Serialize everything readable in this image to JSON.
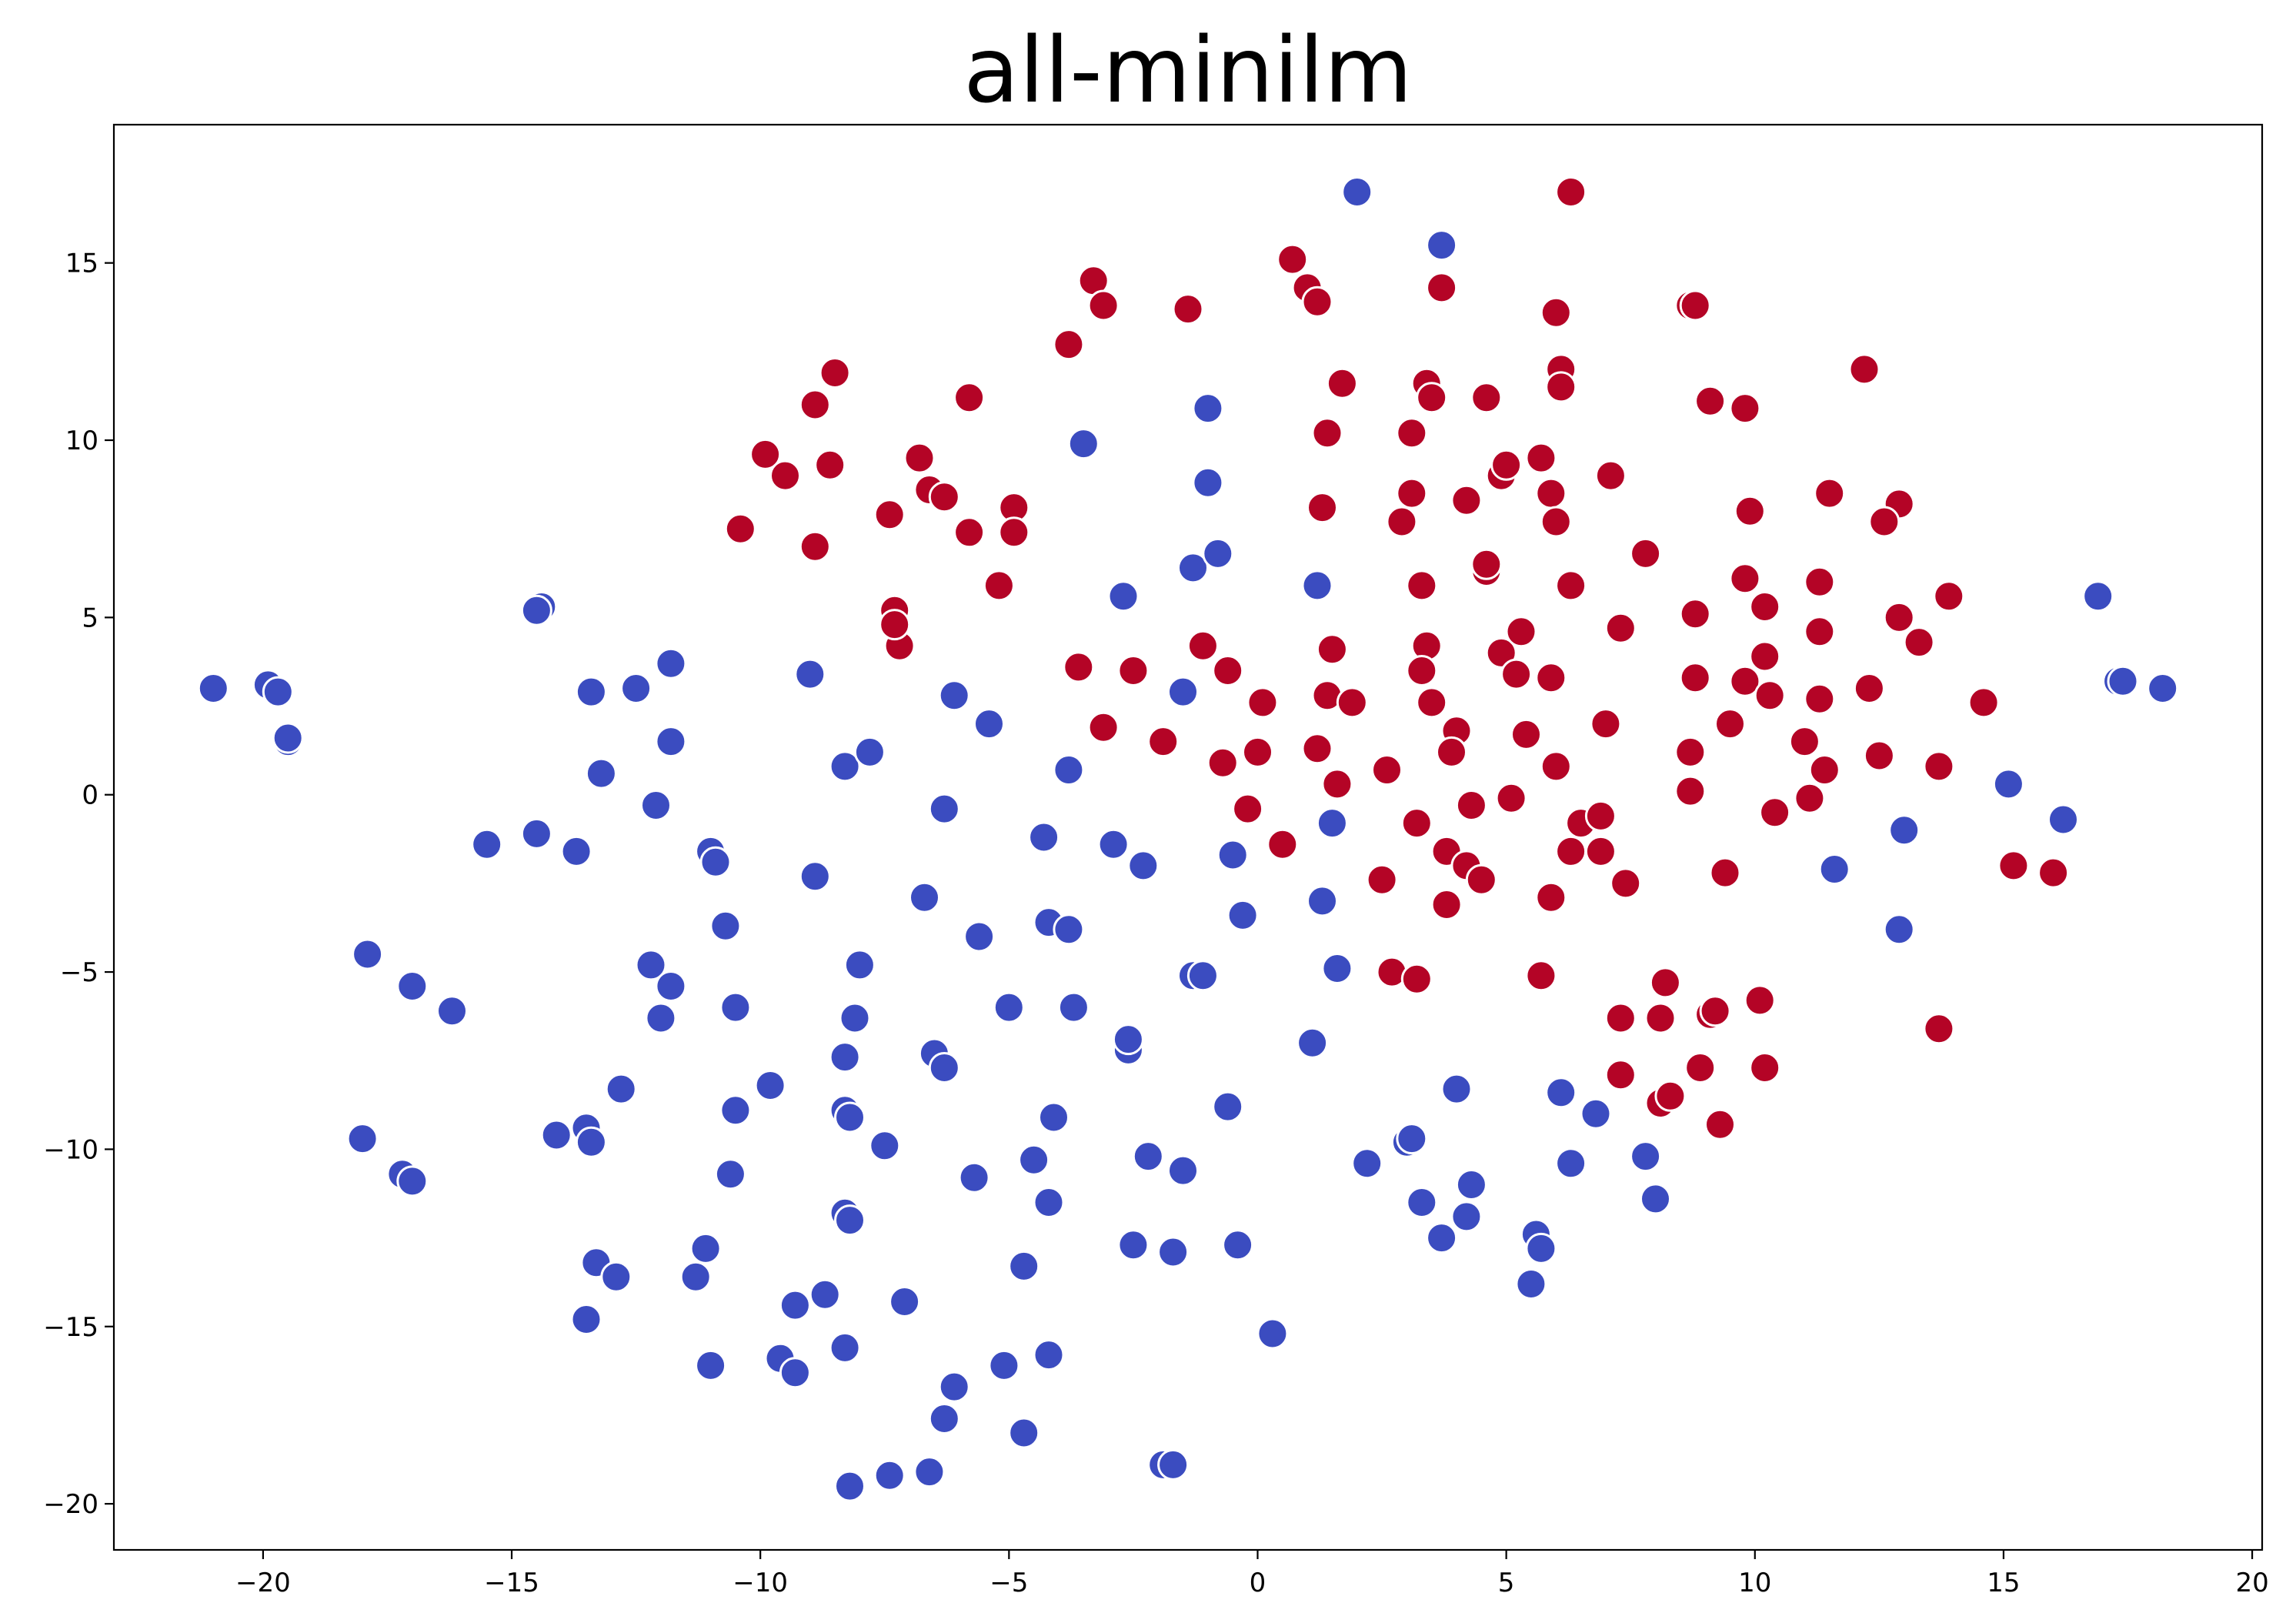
{
  "chart_data": {
    "type": "scatter",
    "title": "all-minilm",
    "xlabel": "",
    "ylabel": "",
    "xlim": [
      -23.0,
      20.2
    ],
    "ylim": [
      -21.3,
      18.9
    ],
    "xticks": [
      -20,
      -15,
      -10,
      -5,
      0,
      5,
      10,
      15,
      20
    ],
    "yticks": [
      15,
      10,
      5,
      0,
      -5,
      -10,
      -15,
      -20
    ],
    "xtick_labels": [
      "−20",
      "−15",
      "−10",
      "−5",
      "0",
      "5",
      "10",
      "15",
      "20"
    ],
    "ytick_labels": [
      "15",
      "10",
      "5",
      "0",
      "−5",
      "−10",
      "−15",
      "−20"
    ],
    "grid": false,
    "legend": "none",
    "series": [
      {
        "color": "#3b4cc0",
        "points": [
          [
            2.0,
            17.0
          ],
          [
            3.7,
            15.5
          ],
          [
            -3.5,
            9.9
          ],
          [
            -1.0,
            10.9
          ],
          [
            -1.0,
            8.8
          ],
          [
            -1.3,
            6.4
          ],
          [
            -0.8,
            6.8
          ],
          [
            1.2,
            5.9
          ],
          [
            -2.7,
            5.6
          ],
          [
            -21.0,
            3.0
          ],
          [
            -19.9,
            3.1
          ],
          [
            -19.7,
            2.9
          ],
          [
            -19.5,
            1.5
          ],
          [
            -19.5,
            1.6
          ],
          [
            -14.4,
            5.3
          ],
          [
            -14.5,
            5.2
          ],
          [
            -13.4,
            2.9
          ],
          [
            -12.5,
            3.0
          ],
          [
            -11.8,
            3.7
          ],
          [
            -9.0,
            3.4
          ],
          [
            -6.1,
            2.8
          ],
          [
            -5.4,
            2.0
          ],
          [
            -1.5,
            2.9
          ],
          [
            -11.8,
            1.5
          ],
          [
            -13.2,
            0.6
          ],
          [
            -8.3,
            0.8
          ],
          [
            -7.8,
            1.2
          ],
          [
            -3.8,
            0.7
          ],
          [
            -12.1,
            -0.3
          ],
          [
            -6.3,
            -0.4
          ],
          [
            -15.5,
            -1.4
          ],
          [
            -14.5,
            -1.1
          ],
          [
            -13.7,
            -1.6
          ],
          [
            -11.0,
            -1.6
          ],
          [
            -10.9,
            -1.9
          ],
          [
            -8.9,
            -2.3
          ],
          [
            -4.3,
            -1.2
          ],
          [
            -2.9,
            -1.4
          ],
          [
            -2.3,
            -2.0
          ],
          [
            -0.5,
            -1.7
          ],
          [
            1.5,
            -0.8
          ],
          [
            -6.7,
            -2.9
          ],
          [
            -10.7,
            -3.7
          ],
          [
            -5.6,
            -4.0
          ],
          [
            -4.2,
            -3.6
          ],
          [
            -3.8,
            -3.8
          ],
          [
            -0.3,
            -3.4
          ],
          [
            1.3,
            -3.0
          ],
          [
            -17.9,
            -4.5
          ],
          [
            -12.2,
            -4.8
          ],
          [
            -11.8,
            -5.4
          ],
          [
            -17.0,
            -5.4
          ],
          [
            -16.2,
            -6.1
          ],
          [
            -12.0,
            -6.3
          ],
          [
            -10.5,
            -6.0
          ],
          [
            -8.0,
            -4.8
          ],
          [
            -8.1,
            -6.3
          ],
          [
            -5.0,
            -6.0
          ],
          [
            -3.7,
            -6.0
          ],
          [
            -1.3,
            -5.1
          ],
          [
            -1.1,
            -5.1
          ],
          [
            1.6,
            -4.9
          ],
          [
            -8.3,
            -7.4
          ],
          [
            -6.5,
            -7.3
          ],
          [
            -6.3,
            -7.7
          ],
          [
            -2.6,
            -7.2
          ],
          [
            -2.6,
            -6.9
          ],
          [
            1.1,
            -7.0
          ],
          [
            -12.8,
            -8.3
          ],
          [
            -9.8,
            -8.2
          ],
          [
            -10.5,
            -8.9
          ],
          [
            -8.3,
            -8.9
          ],
          [
            -8.2,
            -9.1
          ],
          [
            -4.1,
            -9.1
          ],
          [
            -0.6,
            -8.8
          ],
          [
            -18.0,
            -9.7
          ],
          [
            -14.1,
            -9.6
          ],
          [
            -13.5,
            -9.4
          ],
          [
            -13.4,
            -9.8
          ],
          [
            -7.5,
            -9.9
          ],
          [
            -17.2,
            -10.7
          ],
          [
            -17.0,
            -10.9
          ],
          [
            -10.6,
            -10.7
          ],
          [
            -4.5,
            -10.3
          ],
          [
            -5.7,
            -10.8
          ],
          [
            -2.2,
            -10.2
          ],
          [
            -1.5,
            -10.6
          ],
          [
            2.2,
            -10.4
          ],
          [
            3.0,
            -9.8
          ],
          [
            3.1,
            -9.7
          ],
          [
            4.0,
            -8.3
          ],
          [
            6.1,
            -8.4
          ],
          [
            6.8,
            -9.0
          ],
          [
            7.8,
            -10.2
          ],
          [
            -8.3,
            -11.8
          ],
          [
            -8.2,
            -12.0
          ],
          [
            -4.2,
            -11.5
          ],
          [
            3.3,
            -11.5
          ],
          [
            4.2,
            -11.9
          ],
          [
            4.3,
            -11.0
          ],
          [
            6.3,
            -10.4
          ],
          [
            8.0,
            -11.4
          ],
          [
            3.7,
            -12.5
          ],
          [
            5.6,
            -12.4
          ],
          [
            5.7,
            -12.8
          ],
          [
            5.5,
            -13.8
          ],
          [
            -11.1,
            -12.8
          ],
          [
            -13.3,
            -13.2
          ],
          [
            -12.9,
            -13.6
          ],
          [
            -11.3,
            -13.6
          ],
          [
            -7.1,
            -14.3
          ],
          [
            -4.7,
            -13.3
          ],
          [
            -2.5,
            -12.7
          ],
          [
            -1.7,
            -12.9
          ],
          [
            -0.4,
            -12.7
          ],
          [
            -13.5,
            -14.8
          ],
          [
            -9.3,
            -14.4
          ],
          [
            -8.7,
            -14.1
          ],
          [
            -11.0,
            -16.1
          ],
          [
            -9.6,
            -15.9
          ],
          [
            -9.3,
            -16.3
          ],
          [
            -8.3,
            -15.6
          ],
          [
            -4.2,
            -15.8
          ],
          [
            -5.1,
            -16.1
          ],
          [
            -6.1,
            -16.7
          ],
          [
            -6.3,
            -17.6
          ],
          [
            0.3,
            -15.2
          ],
          [
            -4.7,
            -18.0
          ],
          [
            -8.2,
            -19.5
          ],
          [
            -7.4,
            -19.2
          ],
          [
            -6.6,
            -19.1
          ],
          [
            -1.9,
            -18.9
          ],
          [
            -1.7,
            -18.9
          ],
          [
            15.1,
            0.3
          ],
          [
            16.2,
            -0.7
          ],
          [
            13.0,
            -1.0
          ],
          [
            11.6,
            -2.1
          ],
          [
            12.9,
            -3.8
          ],
          [
            16.9,
            5.6
          ],
          [
            17.3,
            3.2
          ],
          [
            17.4,
            3.2
          ],
          [
            18.2,
            3.0
          ]
        ]
      },
      {
        "color": "#b40426",
        "points": [
          [
            6.3,
            17.0
          ],
          [
            0.7,
            15.1
          ],
          [
            1.0,
            14.3
          ],
          [
            1.2,
            13.9
          ],
          [
            -3.3,
            14.5
          ],
          [
            -3.1,
            13.8
          ],
          [
            -1.4,
            13.7
          ],
          [
            3.7,
            14.3
          ],
          [
            6.0,
            13.6
          ],
          [
            8.7,
            13.8
          ],
          [
            8.8,
            13.8
          ],
          [
            -3.8,
            12.7
          ],
          [
            -8.5,
            11.9
          ],
          [
            -8.9,
            11.0
          ],
          [
            -5.8,
            11.2
          ],
          [
            1.7,
            11.6
          ],
          [
            3.4,
            11.6
          ],
          [
            3.5,
            11.2
          ],
          [
            4.6,
            11.2
          ],
          [
            6.1,
            12.0
          ],
          [
            6.1,
            11.5
          ],
          [
            9.1,
            11.1
          ],
          [
            9.8,
            10.9
          ],
          [
            12.2,
            12.0
          ],
          [
            -9.9,
            9.6
          ],
          [
            -9.5,
            9.0
          ],
          [
            -8.6,
            9.3
          ],
          [
            -6.8,
            9.5
          ],
          [
            -6.6,
            8.6
          ],
          [
            -6.3,
            8.4
          ],
          [
            -4.9,
            8.1
          ],
          [
            -7.4,
            7.9
          ],
          [
            -10.4,
            7.5
          ],
          [
            -5.8,
            7.4
          ],
          [
            -4.9,
            7.4
          ],
          [
            -8.9,
            7.0
          ],
          [
            1.4,
            10.2
          ],
          [
            3.1,
            10.2
          ],
          [
            1.3,
            8.1
          ],
          [
            3.1,
            8.5
          ],
          [
            2.9,
            7.7
          ],
          [
            4.2,
            8.3
          ],
          [
            4.9,
            9.0
          ],
          [
            5.0,
            9.3
          ],
          [
            5.7,
            9.5
          ],
          [
            5.9,
            8.5
          ],
          [
            6.0,
            7.7
          ],
          [
            7.1,
            9.0
          ],
          [
            9.9,
            8.0
          ],
          [
            11.5,
            8.5
          ],
          [
            12.9,
            8.2
          ],
          [
            12.6,
            7.7
          ],
          [
            -5.2,
            5.9
          ],
          [
            -7.3,
            5.2
          ],
          [
            -7.2,
            4.2
          ],
          [
            -7.3,
            4.8
          ],
          [
            3.3,
            5.9
          ],
          [
            4.6,
            6.3
          ],
          [
            4.6,
            6.5
          ],
          [
            6.3,
            5.9
          ],
          [
            7.8,
            6.8
          ],
          [
            9.8,
            6.1
          ],
          [
            11.3,
            6.0
          ],
          [
            13.9,
            5.6
          ],
          [
            -3.6,
            3.6
          ],
          [
            -2.5,
            3.5
          ],
          [
            -1.1,
            4.2
          ],
          [
            -0.6,
            3.5
          ],
          [
            1.5,
            4.1
          ],
          [
            3.4,
            4.2
          ],
          [
            3.3,
            3.5
          ],
          [
            4.9,
            4.0
          ],
          [
            5.3,
            4.6
          ],
          [
            5.2,
            3.4
          ],
          [
            5.9,
            3.3
          ],
          [
            7.3,
            4.7
          ],
          [
            8.8,
            5.1
          ],
          [
            10.2,
            5.3
          ],
          [
            11.3,
            4.6
          ],
          [
            12.9,
            5.0
          ],
          [
            13.3,
            4.3
          ],
          [
            -3.1,
            1.9
          ],
          [
            -1.9,
            1.5
          ],
          [
            0.1,
            2.6
          ],
          [
            1.4,
            2.8
          ],
          [
            1.9,
            2.6
          ],
          [
            3.5,
            2.6
          ],
          [
            4.0,
            1.8
          ],
          [
            3.9,
            1.2
          ],
          [
            5.4,
            1.7
          ],
          [
            7.0,
            2.0
          ],
          [
            8.8,
            3.3
          ],
          [
            9.5,
            2.0
          ],
          [
            9.8,
            3.2
          ],
          [
            10.2,
            3.9
          ],
          [
            10.3,
            2.8
          ],
          [
            11.3,
            2.7
          ],
          [
            12.3,
            3.0
          ],
          [
            14.6,
            2.6
          ],
          [
            -0.7,
            0.9
          ],
          [
            0.0,
            1.2
          ],
          [
            1.2,
            1.3
          ],
          [
            1.6,
            0.3
          ],
          [
            2.6,
            0.7
          ],
          [
            6.0,
            0.8
          ],
          [
            8.7,
            1.2
          ],
          [
            11.0,
            1.5
          ],
          [
            11.4,
            0.7
          ],
          [
            12.5,
            1.1
          ],
          [
            13.7,
            0.8
          ],
          [
            -0.2,
            -0.4
          ],
          [
            0.5,
            -1.4
          ],
          [
            3.2,
            -0.8
          ],
          [
            4.3,
            -0.3
          ],
          [
            5.1,
            -0.1
          ],
          [
            6.5,
            -0.8
          ],
          [
            6.9,
            -0.6
          ],
          [
            8.7,
            0.1
          ],
          [
            10.4,
            -0.5
          ],
          [
            11.1,
            -0.1
          ],
          [
            3.8,
            -1.6
          ],
          [
            4.2,
            -2.0
          ],
          [
            4.5,
            -2.4
          ],
          [
            6.3,
            -1.6
          ],
          [
            6.9,
            -1.6
          ],
          [
            2.5,
            -2.4
          ],
          [
            3.8,
            -3.1
          ],
          [
            5.9,
            -2.9
          ],
          [
            7.4,
            -2.5
          ],
          [
            9.4,
            -2.2
          ],
          [
            15.2,
            -2.0
          ],
          [
            16.0,
            -2.2
          ],
          [
            2.7,
            -5.0
          ],
          [
            3.2,
            -5.2
          ],
          [
            5.7,
            -5.1
          ],
          [
            8.2,
            -5.3
          ],
          [
            7.3,
            -6.3
          ],
          [
            8.1,
            -6.3
          ],
          [
            9.1,
            -6.2
          ],
          [
            9.2,
            -6.1
          ],
          [
            10.1,
            -5.8
          ],
          [
            13.7,
            -6.6
          ],
          [
            7.3,
            -7.9
          ],
          [
            8.9,
            -7.7
          ],
          [
            10.2,
            -7.7
          ],
          [
            8.1,
            -8.7
          ],
          [
            8.3,
            -8.5
          ],
          [
            9.3,
            -9.3
          ]
        ]
      }
    ]
  }
}
